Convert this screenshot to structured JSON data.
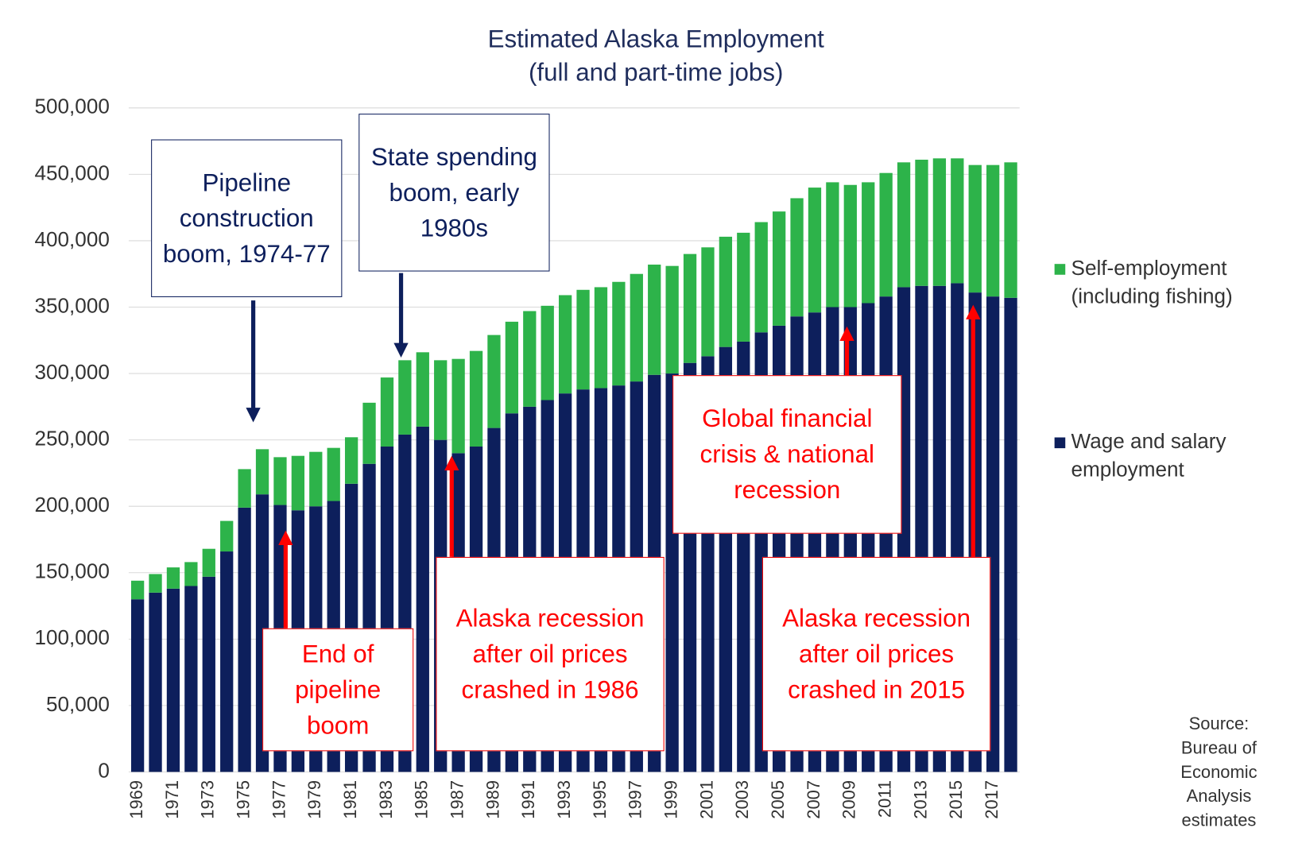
{
  "chart_data": {
    "type": "bar",
    "stacked": true,
    "title": "Estimated Alaska Employment",
    "subtitle": "(full and part-time jobs)",
    "categories": [
      "1969",
      null,
      "1971",
      null,
      "1973",
      null,
      "1975",
      null,
      "1977",
      null,
      "1979",
      null,
      "1981",
      null,
      "1983",
      null,
      "1985",
      null,
      "1987",
      null,
      "1989",
      null,
      "1991",
      null,
      "1993",
      null,
      "1995",
      null,
      "1997",
      null,
      "1999",
      null,
      "2001",
      null,
      "2003",
      null,
      "2005",
      null,
      "2007",
      null,
      "2009",
      null,
      "2011",
      null,
      "2013",
      null,
      "2015",
      null,
      "2017",
      null
    ],
    "series": [
      {
        "name": "Wage and salary employment",
        "color": "#0d1f5c",
        "values": [
          130000,
          135000,
          138000,
          140000,
          147000,
          166000,
          199000,
          209000,
          201000,
          197000,
          200000,
          204000,
          217000,
          232000,
          245000,
          254000,
          260000,
          250000,
          240000,
          245000,
          259000,
          270000,
          275000,
          280000,
          285000,
          288000,
          289000,
          291000,
          294000,
          299000,
          300000,
          308000,
          313000,
          320000,
          324000,
          331000,
          336000,
          343000,
          346000,
          350000,
          350000,
          353000,
          358000,
          365000,
          366000,
          366000,
          368000,
          361000,
          358000,
          357000
        ]
      },
      {
        "name": "Self-employment (including fishing)",
        "color": "#2db34a",
        "values": [
          14000,
          14000,
          16000,
          18000,
          21000,
          23000,
          29000,
          34000,
          36000,
          41000,
          41000,
          40000,
          35000,
          46000,
          52000,
          56000,
          56000,
          60000,
          71000,
          72000,
          70000,
          69000,
          72000,
          71000,
          74000,
          75000,
          76000,
          78000,
          81000,
          83000,
          81000,
          82000,
          82000,
          83000,
          82000,
          83000,
          86000,
          89000,
          94000,
          94000,
          92000,
          91000,
          93000,
          94000,
          95000,
          96000,
          94000,
          96000,
          99000,
          102000
        ]
      }
    ],
    "ylim": [
      0,
      500000
    ],
    "yticks": [
      0,
      {
        "value": 50000,
        "label": "50,000"
      },
      {
        "value": 100000,
        "label": "100,000"
      },
      {
        "value": 150000,
        "label": "150,000"
      },
      {
        "value": 200000,
        "label": "200,000"
      },
      {
        "value": 250000,
        "label": "250,000"
      },
      {
        "value": 300000,
        "label": "300,000"
      },
      {
        "value": 350000,
        "label": "350,000"
      },
      {
        "value": 400000,
        "label": "400,000"
      },
      {
        "value": 450000,
        "label": "450,000"
      },
      {
        "value": 500000,
        "label": "500,000"
      }
    ],
    "grid": true,
    "legend": "right",
    "annotations": [
      "Pipeline construction boom, 1974-77",
      "State spending boom, early 1980s",
      "End of pipeline boom",
      "Alaska recession after oil prices crashed in 1986",
      "Global financial crisis & national recession",
      "Alaska recession after oil prices crashed in 2015"
    ],
    "source": "Source: Bureau of Economic Analysis estimates"
  }
}
